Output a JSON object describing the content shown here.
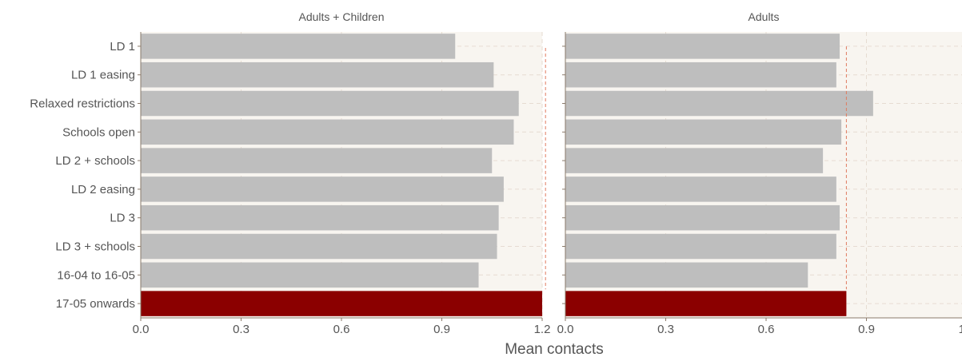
{
  "chart_data": {
    "type": "bar",
    "orientation": "horizontal",
    "categories": [
      "LD 1",
      "LD 1 easing",
      "Relaxed restrictions",
      "Schools open",
      "LD 2 + schools",
      "LD 2 easing",
      "LD 3",
      "LD 3 + schools",
      "16-04 to 16-05",
      "17-05 onwards"
    ],
    "xlabel": "Mean contacts",
    "xlim": [
      0,
      1.2
    ],
    "xticks": [
      "0.0",
      "0.3",
      "0.6",
      "0.9",
      "1.2"
    ],
    "grid": true,
    "highlight_category": "17-05 onwards",
    "colors": {
      "bar": "#bebebe",
      "highlight": "#8b0000",
      "reference_line": "#e07b5f",
      "panel_bg": "#f8f5f0",
      "grid": "#e6dcd2"
    },
    "panels": [
      {
        "title": "Adults + Children",
        "values": [
          0.94,
          1.055,
          1.13,
          1.115,
          1.05,
          1.085,
          1.07,
          1.065,
          1.01,
          1.21
        ],
        "reference": 1.21
      },
      {
        "title": "Adults",
        "values": [
          0.82,
          0.81,
          0.92,
          0.825,
          0.77,
          0.81,
          0.82,
          0.81,
          0.725,
          0.84
        ],
        "reference": 0.84
      }
    ]
  }
}
